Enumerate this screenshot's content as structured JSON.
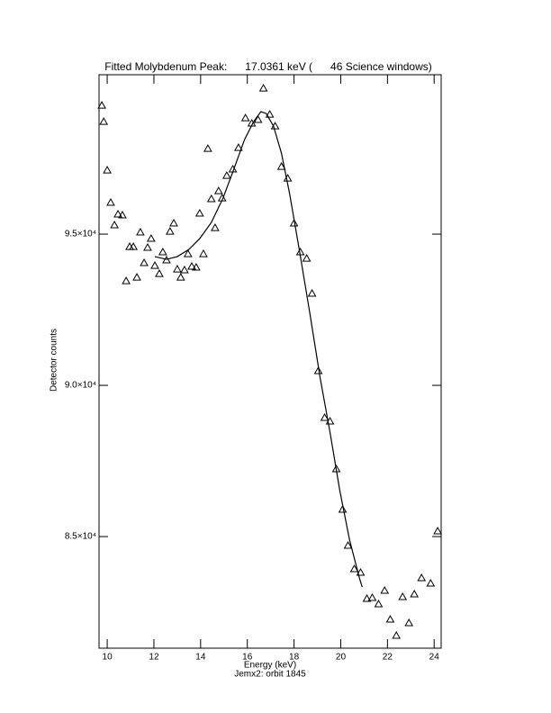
{
  "chart_data": {
    "type": "scatter",
    "title": "Fitted Molybdenum Peak:      17.0361 keV (      46 Science windows)",
    "x_label": "Energy (keV)",
    "y_label": "Detector counts",
    "subtitle": "Jemx2: orbit 1845",
    "xlim": [
      9.65,
      24.3
    ],
    "ylim": [
      81310,
      100270
    ],
    "xticks": [
      10,
      12,
      14,
      16,
      18,
      20,
      22,
      24
    ],
    "yticks": [
      {
        "value": 85000,
        "label": "8.5×10⁴"
      },
      {
        "value": 90000,
        "label": "9.0×10⁴"
      },
      {
        "value": 95000,
        "label": "9.5×10⁴"
      }
    ],
    "series": [
      {
        "type": "scatter",
        "color": "#000000",
        "x": [
          9.77,
          9.85,
          10.0,
          10.15,
          10.31,
          10.46,
          10.65,
          10.81,
          10.96,
          11.12,
          11.27,
          11.42,
          11.58,
          11.73,
          11.88,
          12.04,
          12.23,
          12.38,
          12.54,
          12.69,
          12.85,
          13.0,
          13.15,
          13.31,
          13.46,
          13.62,
          13.81,
          13.96,
          14.12,
          14.31,
          14.46,
          14.62,
          14.77,
          14.92,
          15.12,
          15.38,
          15.62,
          15.92,
          16.19,
          16.46,
          16.69,
          16.96,
          17.19,
          17.46,
          17.73,
          18.0,
          18.27,
          18.54,
          18.77,
          19.04,
          19.31,
          19.54,
          19.81,
          20.08,
          20.31,
          20.58,
          20.85,
          21.12,
          21.35,
          21.62,
          21.88,
          22.12,
          22.38,
          22.65,
          22.92,
          23.15,
          23.46,
          23.85,
          24.15
        ],
        "values": [
          99256,
          98720,
          97113,
          96042,
          95298,
          95655,
          95625,
          93452,
          94583,
          94583,
          93571,
          95060,
          94048,
          94554,
          94851,
          93958,
          93690,
          94405,
          94137,
          95089,
          95357,
          93839,
          93571,
          93810,
          94345,
          93929,
          93899,
          95685,
          94345,
          97827,
          96161,
          95208,
          96428,
          96190,
          96934,
          97143,
          97857,
          98839,
          98661,
          98780,
          99821,
          98958,
          98571,
          97232,
          96845,
          95357,
          94405,
          94196,
          93036,
          90476,
          88929,
          88810,
          87232,
          85893,
          84703,
          83929,
          83810,
          82947,
          82976,
          82768,
          83214,
          82262,
          81726,
          83006,
          82143,
          83095,
          83631,
          83452,
          85179
        ]
      },
      {
        "type": "line",
        "color": "#000000",
        "x": [
          12.04,
          12.54,
          13.0,
          13.5,
          13.96,
          14.46,
          14.96,
          15.42,
          15.88,
          16.27,
          16.58,
          16.81,
          17.12,
          17.46,
          17.81,
          18.23,
          18.69,
          19.12,
          19.54,
          19.96,
          20.38,
          20.81,
          20.92
        ],
        "values": [
          94256,
          94167,
          94256,
          94494,
          94851,
          95387,
          96190,
          97143,
          98125,
          98720,
          99048,
          98988,
          98571,
          97679,
          96339,
          94464,
          92321,
          90238,
          88452,
          86518,
          84881,
          83601,
          83333
        ]
      }
    ]
  }
}
